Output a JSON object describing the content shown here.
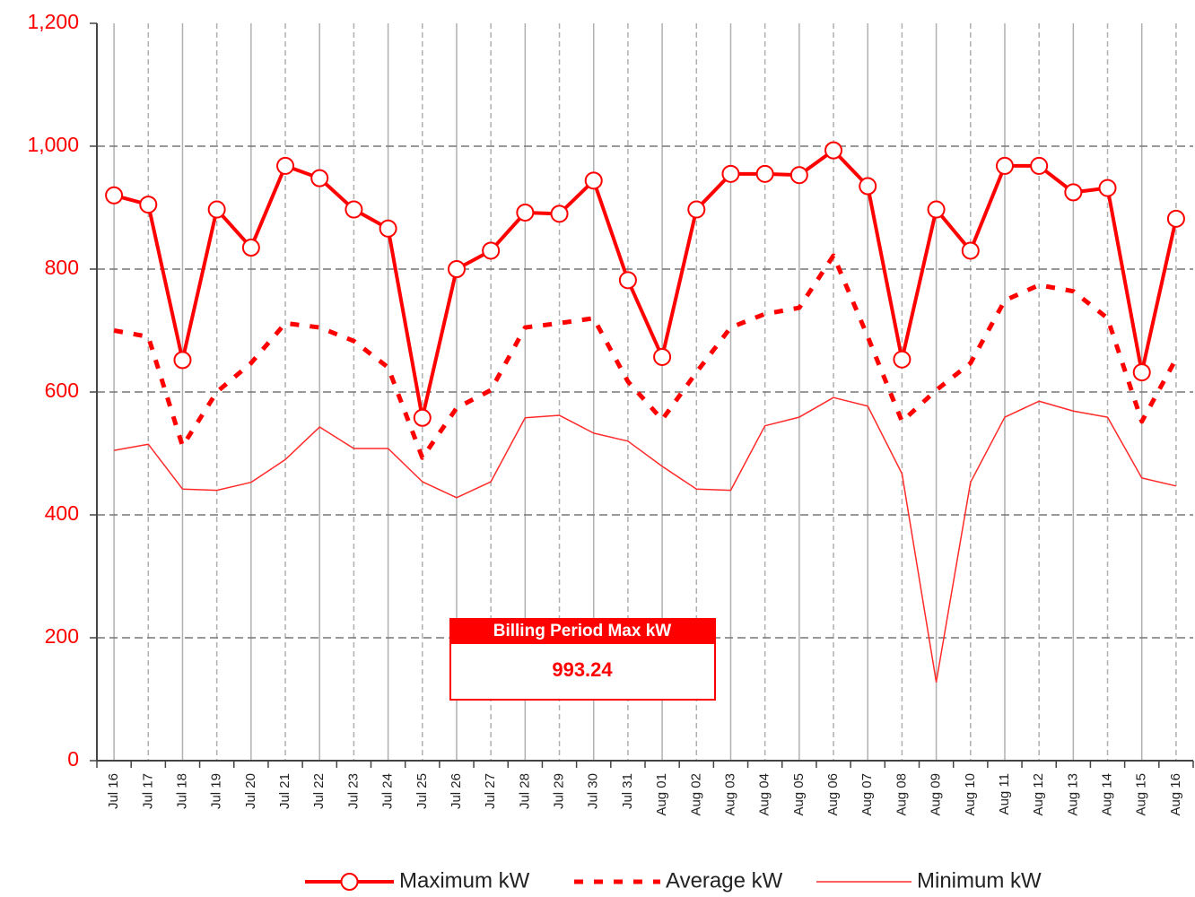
{
  "chart_data": {
    "type": "line",
    "categories": [
      "Jul 16",
      "Jul 17",
      "Jul 18",
      "Jul 19",
      "Jul 20",
      "Jul 21",
      "Jul 22",
      "Jul 23",
      "Jul 24",
      "Jul 25",
      "Jul 26",
      "Jul 27",
      "Jul 28",
      "Jul 29",
      "Jul 30",
      "Jul 31",
      "Aug 01",
      "Aug 02",
      "Aug 03",
      "Aug 04",
      "Aug 05",
      "Aug 06",
      "Aug 07",
      "Aug 08",
      "Aug 09",
      "Aug 10",
      "Aug 11",
      "Aug 12",
      "Aug 13",
      "Aug 14",
      "Aug 15",
      "Aug 16"
    ],
    "series": [
      {
        "name": "Maximum kW",
        "color": "#ff0000",
        "line_style": "solid",
        "line_width": 4,
        "marker": "circle",
        "values": [
          920,
          905,
          652,
          897,
          835,
          968,
          948,
          897,
          866,
          558,
          800,
          830,
          892,
          890,
          944,
          782,
          657,
          897,
          955,
          955,
          953,
          993.24,
          935,
          653,
          897,
          830,
          968,
          968,
          925,
          932,
          632,
          882
        ]
      },
      {
        "name": "Average kW",
        "color": "#ff0000",
        "line_style": "dashed",
        "line_width": 5,
        "marker": null,
        "values": [
          700,
          690,
          512,
          600,
          647,
          712,
          705,
          683,
          640,
          493,
          574,
          603,
          705,
          712,
          720,
          617,
          555,
          632,
          705,
          727,
          737,
          822,
          690,
          552,
          603,
          647,
          749,
          774,
          764,
          720,
          552,
          654
        ]
      },
      {
        "name": "Minimum kW",
        "color": "#ff2a2a",
        "line_style": "solid",
        "line_width": 1.5,
        "marker": null,
        "values": [
          505,
          515,
          442,
          440,
          453,
          490,
          543,
          508,
          508,
          454,
          428,
          454,
          558,
          562,
          533,
          520,
          479,
          442,
          440,
          545,
          559,
          591,
          577,
          467,
          128,
          453,
          559,
          585,
          569,
          559,
          460,
          447
        ]
      }
    ],
    "ylim": [
      0,
      1200
    ],
    "yticks": [
      0,
      200,
      400,
      600,
      800,
      {
        "value": 1000,
        "label": "1,000"
      },
      {
        "value": 1200,
        "label": "1,200"
      }
    ],
    "grid": true,
    "legend": "bottom",
    "annotation": {
      "title": "Billing Period Max kW",
      "text": "993.24"
    }
  }
}
